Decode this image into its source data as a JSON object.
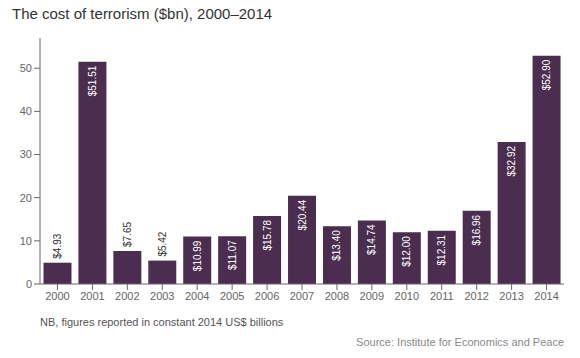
{
  "chart_data": {
    "type": "bar",
    "title": "The cost of terrorism ($bn), 2000–2014",
    "categories": [
      "2000",
      "2001",
      "2002",
      "2003",
      "2004",
      "2005",
      "2006",
      "2007",
      "2008",
      "2009",
      "2010",
      "2011",
      "2012",
      "2013",
      "2014"
    ],
    "values": [
      4.93,
      51.51,
      7.65,
      5.42,
      10.99,
      11.07,
      15.78,
      20.44,
      13.4,
      14.74,
      12.0,
      12.31,
      16.96,
      32.92,
      52.9
    ],
    "value_labels": [
      "$4.93",
      "$51.51",
      "$7.65",
      "$5.42",
      "$10.99",
      "$11.07",
      "$15.78",
      "$20.44",
      "$13.40",
      "$14.74",
      "$12.00",
      "$12.31",
      "$16.96",
      "$32.92",
      "$52.90"
    ],
    "data_labels": true,
    "color": "#4b2d4f",
    "ylim": [
      0,
      57
    ],
    "yticks": [
      0,
      10,
      20,
      30,
      40,
      50
    ],
    "grid": false,
    "annotations": [
      "NB, figures reported in constant 2014 US$ billions",
      "Source: Institute for Economics and Peace"
    ]
  }
}
